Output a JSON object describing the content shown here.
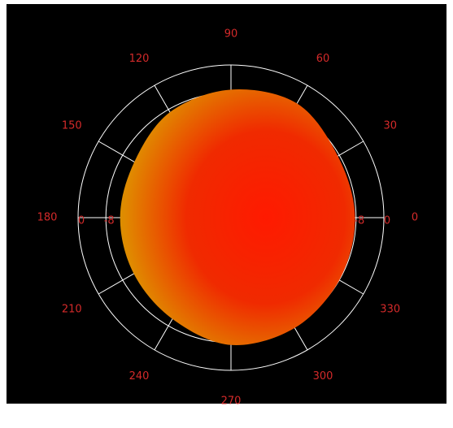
{
  "chart_data": {
    "type": "polar",
    "thetaticks": [
      0,
      30,
      60,
      90,
      120,
      150,
      180,
      210,
      240,
      270,
      300,
      330
    ],
    "rlim": [
      -44,
      0
    ],
    "rticks": [
      -8,
      0
    ],
    "series": [
      {
        "theta": [
          0,
          30,
          60,
          90,
          120,
          150,
          180,
          210,
          240,
          270,
          300,
          330
        ],
        "values": [
          -8.3,
          -8.5,
          -6,
          -7.1,
          -8.9,
          -11.9,
          -12.1,
          -11.7,
          -10.3,
          -7.3,
          -7.3,
          -8
        ]
      }
    ]
  }
}
